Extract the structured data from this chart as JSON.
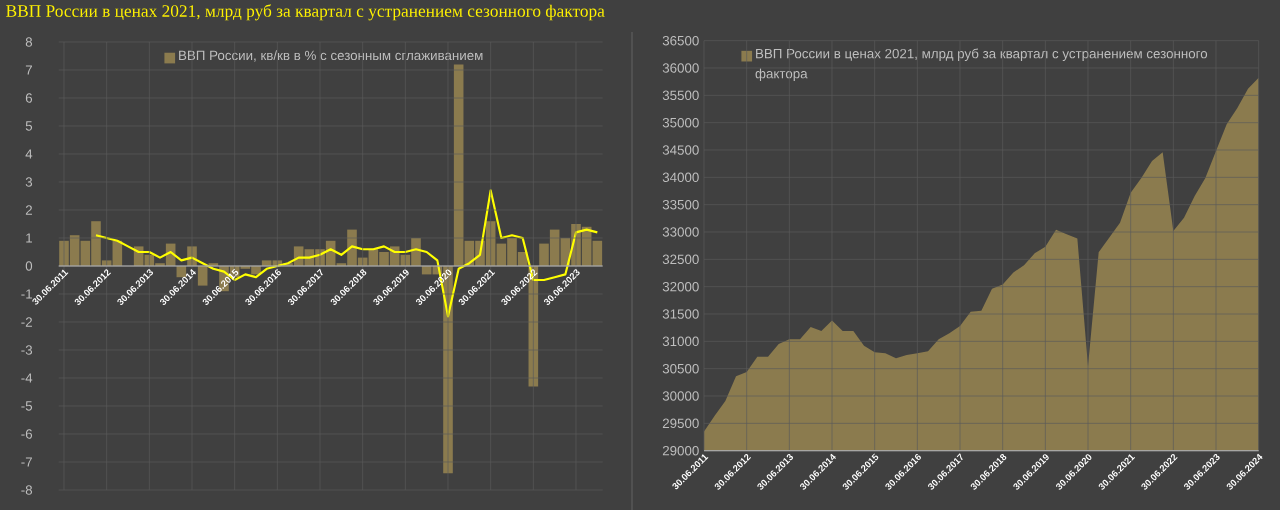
{
  "chart_data": [
    {
      "type": "bar",
      "title": "ВВП России в ценах 2021, млрд руб за квартал с устранением сезонного фактора",
      "categories": [
        "30.06.2011",
        null,
        null,
        null,
        "30.06.2012",
        null,
        null,
        null,
        "30.06.2013",
        null,
        null,
        null,
        "30.06.2014",
        null,
        null,
        null,
        "30.06.2015",
        null,
        null,
        null,
        "30.06.2016",
        null,
        null,
        null,
        "30.06.2017",
        null,
        null,
        null,
        "30.06.2018",
        null,
        null,
        null,
        "30.06.2019",
        null,
        null,
        null,
        "30.06.2020",
        null,
        null,
        null,
        "30.06.2021",
        null,
        null,
        null,
        "30.06.2022",
        null,
        null,
        null,
        "30.06.2023",
        null,
        null
      ],
      "series": [
        {
          "name": "ВВП России, кв/кв в % с сезонным сглаживанием",
          "color": "#8b7b4e",
          "values": [
            0.9,
            1.1,
            0.9,
            1.6,
            0.2,
            0.9,
            0.0,
            0.7,
            0.4,
            0.1,
            0.8,
            -0.4,
            0.7,
            -0.7,
            0.1,
            -0.9,
            -0.4,
            -0.1,
            -0.3,
            0.2,
            0.2,
            0.1,
            0.7,
            0.6,
            0.6,
            0.9,
            0.1,
            1.3,
            0.3,
            0.6,
            0.5,
            0.7,
            0.4,
            1.0,
            -0.3,
            -0.3,
            -7.4,
            7.2,
            0.9,
            0.9,
            1.6,
            0.8,
            1.0,
            0.5,
            -4.3,
            0.8,
            1.3,
            1.0,
            1.5,
            1.4,
            0.9
          ]
        },
        {
          "type": "line",
          "color": "#ffff00",
          "values": [
            null,
            null,
            null,
            1.1,
            1.0,
            0.9,
            0.7,
            0.5,
            0.5,
            0.3,
            0.5,
            0.2,
            0.3,
            0.1,
            -0.1,
            -0.2,
            -0.5,
            -0.3,
            -0.4,
            -0.1,
            0.0,
            0.1,
            0.3,
            0.3,
            0.4,
            0.6,
            0.4,
            0.7,
            0.6,
            0.6,
            0.7,
            0.5,
            0.5,
            0.6,
            0.5,
            0.2,
            -1.8,
            -0.1,
            0.1,
            0.4,
            2.7,
            1.0,
            1.1,
            1.0,
            -0.5,
            -0.5,
            -0.4,
            -0.3,
            1.2,
            1.3,
            1.2
          ]
        }
      ],
      "ylim": [
        -8,
        8
      ],
      "yticks": [
        -8,
        -7,
        -6,
        -5,
        -4,
        -3,
        -2,
        -1,
        0,
        1,
        2,
        3,
        4,
        5,
        6,
        7,
        8
      ],
      "grid": true,
      "legend": "top"
    },
    {
      "type": "area",
      "categories": [
        "30.06.2011",
        null,
        null,
        null,
        "30.06.2012",
        null,
        null,
        null,
        "30.06.2013",
        null,
        null,
        null,
        "30.06.2014",
        null,
        null,
        null,
        "30.06.2015",
        null,
        null,
        null,
        "30.06.2016",
        null,
        null,
        null,
        "30.06.2017",
        null,
        null,
        null,
        "30.06.2018",
        null,
        null,
        null,
        "30.06.2019",
        null,
        null,
        null,
        "30.06.2020",
        null,
        null,
        null,
        "30.06.2021",
        null,
        null,
        null,
        "30.06.2022",
        null,
        null,
        null,
        "30.06.2023",
        null,
        null,
        null,
        "30.06.2024"
      ],
      "series": [
        {
          "name": "ВВП России в ценах 2021, млрд руб за квартал с устранением сезонного фактора",
          "color": "#8b7b4e",
          "values": [
            29350,
            29640,
            29910,
            30360,
            30440,
            30720,
            30720,
            30950,
            31040,
            31040,
            31260,
            31190,
            31380,
            31190,
            31190,
            30920,
            30800,
            30780,
            30690,
            30750,
            30780,
            30820,
            31040,
            31150,
            31280,
            31540,
            31560,
            31960,
            32040,
            32260,
            32390,
            32610,
            32730,
            33040,
            32960,
            32880,
            30550,
            32630,
            32900,
            33170,
            33720,
            33990,
            34300,
            34460,
            33020,
            33260,
            33660,
            33990,
            34480,
            34970,
            35270,
            35620,
            35820
          ]
        }
      ],
      "ylim": [
        29000,
        36500
      ],
      "yticks": [
        29000,
        29500,
        30000,
        30500,
        31000,
        31500,
        32000,
        32500,
        33000,
        33500,
        34000,
        34500,
        35000,
        35500,
        36000,
        36500
      ],
      "grid": true,
      "legend": "top"
    }
  ]
}
